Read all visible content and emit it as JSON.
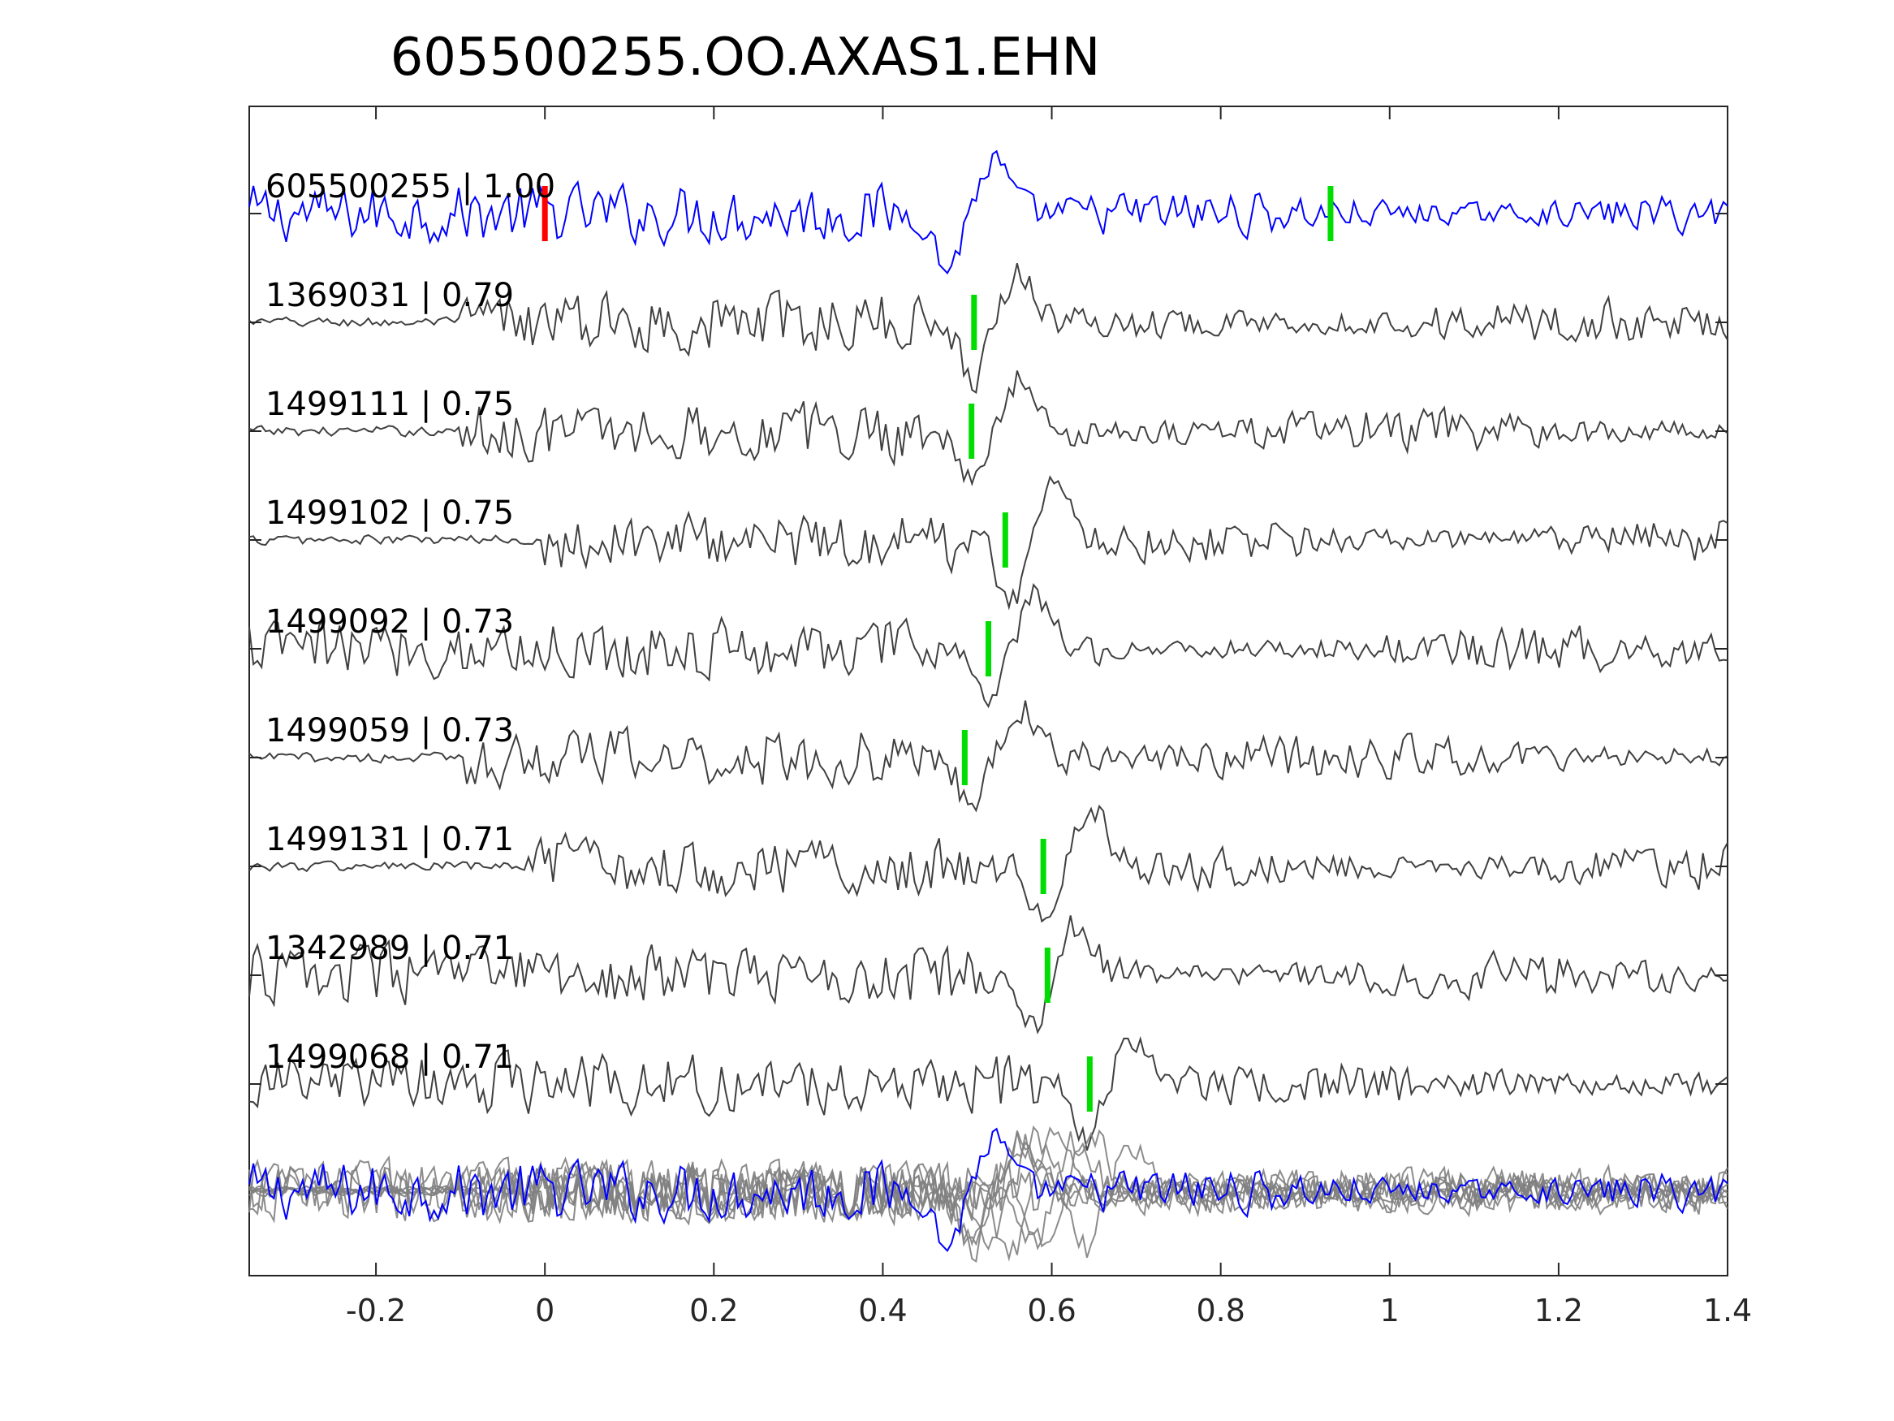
{
  "chart_data": {
    "type": "line",
    "title": "605500255.OO.AXAS1.EHN",
    "xlabel": "",
    "ylabel": "",
    "xlim": [
      -0.35,
      1.4
    ],
    "x_ticks": [
      -0.2,
      0,
      0.2,
      0.4,
      0.6,
      0.8,
      1,
      1.2,
      1.4
    ],
    "x_tick_labels": [
      "-0.2",
      "0",
      "0.2",
      "0.4",
      "0.6",
      "0.8",
      "1",
      "1.2",
      "1.4"
    ],
    "grid": false,
    "colors": {
      "template": "#0000ff",
      "match": "#404040",
      "overlay": "#808080",
      "pick_red": "#ff0000",
      "pick_green": "#00dd00",
      "axis": "#262626"
    },
    "series": [
      {
        "name": "605500255",
        "label": "605500255 | 1.00",
        "cc": 1.0,
        "role": "template",
        "red_pick_time": 0.0,
        "green_pick_time": 0.93,
        "event_onset": -0.35,
        "event_center": 0.5,
        "peak_amplitude": 0.55
      },
      {
        "name": "1369031",
        "label": "1369031 | 0.79",
        "cc": 0.79,
        "role": "match",
        "green_pick_time": 0.508,
        "event_onset": -0.1,
        "event_center": 0.53,
        "peak_amplitude": 0.55
      },
      {
        "name": "1499111",
        "label": "1499111 | 0.75",
        "cc": 0.75,
        "role": "match",
        "green_pick_time": 0.505,
        "event_onset": -0.1,
        "event_center": 0.53,
        "peak_amplitude": 0.55
      },
      {
        "name": "1499102",
        "label": "1499102 | 0.75",
        "cc": 0.75,
        "role": "match",
        "green_pick_time": 0.545,
        "event_onset": 0.0,
        "event_center": 0.575,
        "peak_amplitude": 0.6
      },
      {
        "name": "1499092",
        "label": "1499092 | 0.73",
        "cc": 0.73,
        "role": "match",
        "green_pick_time": 0.525,
        "event_onset": -0.35,
        "event_center": 0.55,
        "peak_amplitude": 0.55
      },
      {
        "name": "1499059",
        "label": "1499059 | 0.73",
        "cc": 0.73,
        "role": "match",
        "green_pick_time": 0.497,
        "event_onset": -0.1,
        "event_center": 0.53,
        "peak_amplitude": 0.55
      },
      {
        "name": "1499131",
        "label": "1499131 | 0.71",
        "cc": 0.71,
        "role": "match",
        "green_pick_time": 0.59,
        "event_onset": -0.02,
        "event_center": 0.615,
        "peak_amplitude": 0.6
      },
      {
        "name": "1342989",
        "label": "1342989 | 0.71",
        "cc": 0.71,
        "role": "match",
        "green_pick_time": 0.595,
        "event_onset": -0.35,
        "event_center": 0.6,
        "peak_amplitude": 0.55
      },
      {
        "name": "1499068",
        "label": "1499068 | 0.71",
        "cc": 0.71,
        "role": "match",
        "green_pick_time": 0.645,
        "event_onset": -0.35,
        "event_center": 0.665,
        "peak_amplitude": 0.55
      }
    ],
    "overlay_stack": {
      "includes_template": true,
      "includes_matches": true
    }
  }
}
